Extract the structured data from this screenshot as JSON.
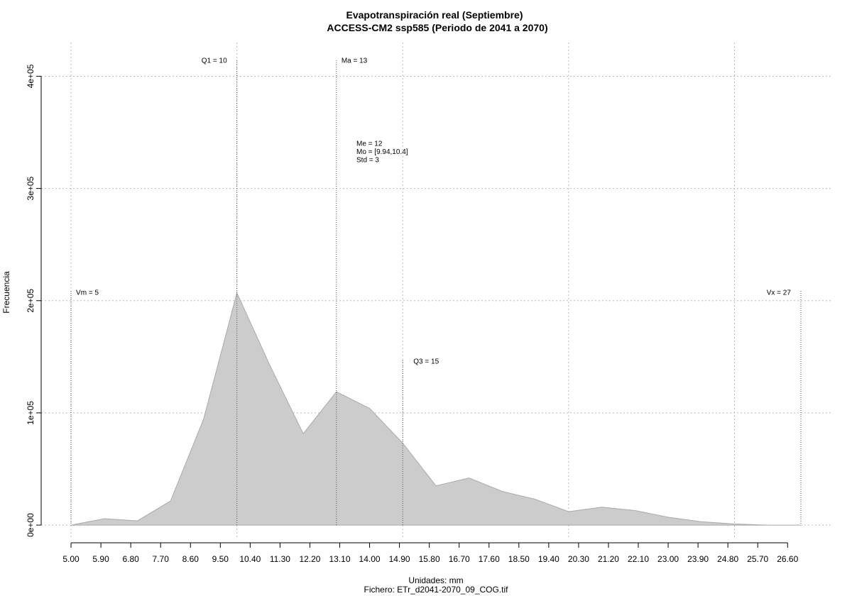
{
  "chart_data": {
    "type": "area",
    "title": "Evapotranspiración real (Septiembre)",
    "subtitle": "ACCESS-CM2 ssp585 (Periodo de 2041 a 2070)",
    "x_label": "Unidades: mm",
    "caption": "Fichero: ETr_d2041-2070_09_COG.tif",
    "y_label": "Frecuencia",
    "x": [
      5,
      6,
      7,
      8,
      9,
      10,
      11,
      12,
      13,
      14,
      15,
      16,
      17,
      18,
      19,
      20,
      21,
      22,
      23,
      24,
      25,
      26,
      27
    ],
    "values": [
      0,
      5700,
      3800,
      21500,
      94800,
      207000,
      142000,
      81500,
      118800,
      104000,
      73000,
      35000,
      42000,
      30000,
      23000,
      12000,
      16000,
      13000,
      7000,
      3000,
      1000,
      0,
      0
    ],
    "color": "#cccccc",
    "xlim": [
      4.1,
      27.9
    ],
    "ylim": [
      -12600,
      430000
    ],
    "xticks": [
      {
        "value": 5.0,
        "label": "5.00"
      },
      {
        "value": 5.9,
        "label": "5.90"
      },
      {
        "value": 6.8,
        "label": "6.80"
      },
      {
        "value": 7.7,
        "label": "7.70"
      },
      {
        "value": 8.6,
        "label": "8.60"
      },
      {
        "value": 9.5,
        "label": "9.50"
      },
      {
        "value": 10.4,
        "label": "10.40"
      },
      {
        "value": 11.3,
        "label": "11.30"
      },
      {
        "value": 12.2,
        "label": "12.20"
      },
      {
        "value": 13.1,
        "label": "13.10"
      },
      {
        "value": 14.0,
        "label": "14.00"
      },
      {
        "value": 14.9,
        "label": "14.90"
      },
      {
        "value": 15.8,
        "label": "15.80"
      },
      {
        "value": 16.7,
        "label": "16.70"
      },
      {
        "value": 17.6,
        "label": "17.60"
      },
      {
        "value": 18.5,
        "label": "18.50"
      },
      {
        "value": 19.4,
        "label": "19.40"
      },
      {
        "value": 20.3,
        "label": "20.30"
      },
      {
        "value": 21.2,
        "label": "21.20"
      },
      {
        "value": 22.1,
        "label": "22.10"
      },
      {
        "value": 23.0,
        "label": "23.00"
      },
      {
        "value": 23.9,
        "label": "23.90"
      },
      {
        "value": 24.8,
        "label": "24.80"
      },
      {
        "value": 25.7,
        "label": "25.70"
      },
      {
        "value": 26.6,
        "label": "26.60"
      }
    ],
    "yticks": [
      {
        "value": 0,
        "label": "0e+00"
      },
      {
        "value": 100000,
        "label": "1e+05"
      },
      {
        "value": 200000,
        "label": "2e+05"
      },
      {
        "value": 300000,
        "label": "3e+05"
      },
      {
        "value": 400000,
        "label": "4e+05"
      }
    ],
    "x_grid": [
      5,
      10,
      15,
      20,
      25
    ],
    "grid": true,
    "reference_lines": [
      {
        "label": "Vm = 5",
        "value": 5
      },
      {
        "label": "Q1 = 10",
        "value": 10
      },
      {
        "label": "Ma = 13",
        "value": 13
      },
      {
        "label": "Q3 = 15",
        "value": 15
      },
      {
        "label": "Vx = 27",
        "value": 27
      }
    ],
    "stats": [
      "Me = 12",
      "Mo = [9.94,10.4]",
      "Std = 3"
    ]
  }
}
